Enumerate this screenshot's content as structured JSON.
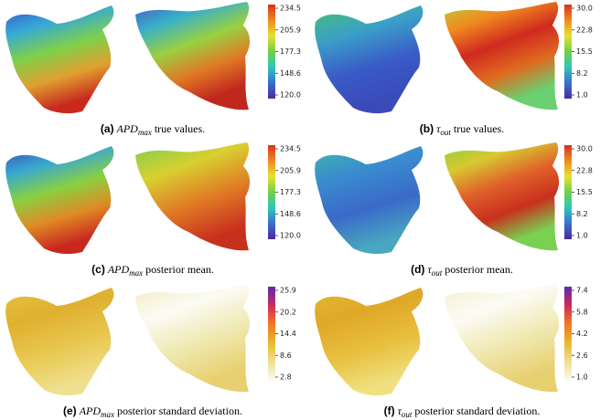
{
  "panels": [
    {
      "label": "(a)",
      "symbol": "APD",
      "subscript": "max",
      "caption": "true values.",
      "colorbar_ticks": [
        "234.5",
        "205.9",
        "177.3",
        "148.6",
        "120.0"
      ]
    },
    {
      "label": "(b)",
      "symbol": "τ",
      "subscript": "out",
      "caption": "true values.",
      "colorbar_ticks": [
        "30.0",
        "22.8",
        "15.5",
        "8.2",
        "1.0"
      ]
    },
    {
      "label": "(c)",
      "symbol": "APD",
      "subscript": "max",
      "caption": "posterior mean.",
      "colorbar_ticks": [
        "234.5",
        "205.9",
        "177.3",
        "148.6",
        "120.0"
      ]
    },
    {
      "label": "(d)",
      "symbol": "τ",
      "subscript": "out",
      "caption": "posterior mean.",
      "colorbar_ticks": [
        "30.0",
        "22.8",
        "15.5",
        "8.2",
        "1.0"
      ]
    },
    {
      "label": "(e)",
      "symbol": "APD",
      "subscript": "max",
      "caption": "posterior standard deviation.",
      "colorbar_ticks": [
        "25.9",
        "20.2",
        "14.4",
        "8.6",
        "2.8"
      ]
    },
    {
      "label": "(f)",
      "symbol": "τ",
      "subscript": "out",
      "caption": "posterior standard deviation.",
      "colorbar_ticks": [
        "7.4",
        "5.8",
        "4.2",
        "2.6",
        "1.0"
      ]
    }
  ]
}
